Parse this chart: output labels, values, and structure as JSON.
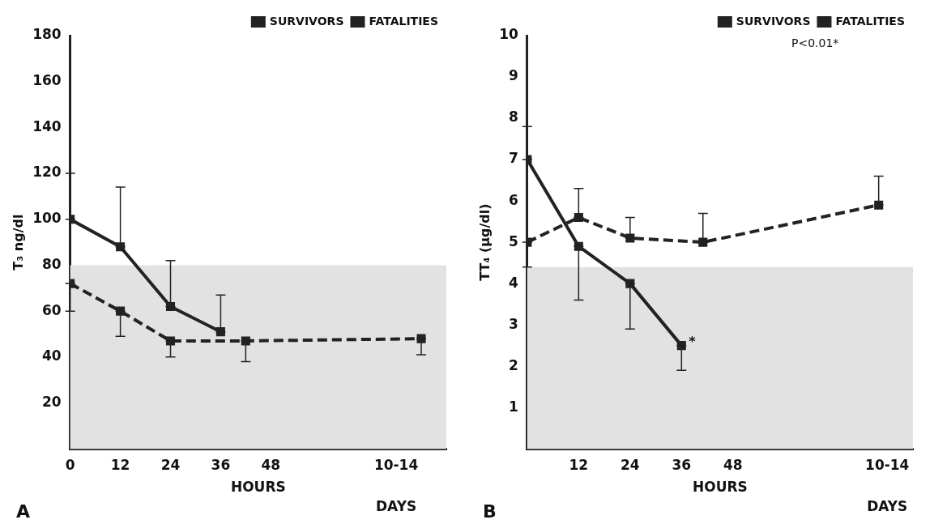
{
  "chart_data": [
    {
      "type": "line",
      "title": "A",
      "xlabel": "HOURS",
      "ylabel": "T₃ ng/dl",
      "xlim": [
        0,
        90
      ],
      "xticks": [
        0,
        12,
        24,
        36,
        48,
        {
          "value": 78,
          "label": "10-14"
        }
      ],
      "ylim": [
        0,
        180
      ],
      "yticks": [
        20,
        40,
        60,
        80,
        100,
        120,
        140,
        160,
        180
      ],
      "grid": false,
      "legend": "top right",
      "marker": "square",
      "series": [
        {
          "name": "SURVIVORS",
          "color": "#222222",
          "line_style": "dashed",
          "x": [
            0,
            12,
            24,
            42,
            84
          ],
          "values": [
            72,
            60,
            47,
            47,
            48
          ],
          "errors": [
            [
              60,
              72
            ],
            [
              49,
              60
            ],
            [
              40,
              47
            ],
            [
              38,
              47
            ],
            [
              41,
              48
            ]
          ]
        },
        {
          "name": "FATALITIES",
          "color": "#222222",
          "line_style": "solid",
          "x": [
            0,
            12,
            24,
            36
          ],
          "values": [
            100,
            88,
            62,
            51
          ],
          "errors": [
            [
              100,
              120
            ],
            [
              88,
              114
            ],
            [
              62,
              82
            ],
            [
              51,
              67
            ]
          ]
        }
      ],
      "bands": [
        {
          "axis": "y",
          "from": 0,
          "to": 80,
          "color": "#e2e2e2"
        }
      ],
      "annotations": [
        "DAYS"
      ]
    },
    {
      "type": "line",
      "title": "B",
      "xlabel": "HOURS",
      "ylabel": "TT₄ (µg/dl)",
      "xlim": [
        0,
        90
      ],
      "xticks": [
        12,
        24,
        36,
        48,
        {
          "value": 84,
          "label": "10-14"
        }
      ],
      "ylim": [
        0,
        10
      ],
      "yticks": [
        1,
        2,
        3,
        4,
        5,
        6,
        7,
        8,
        9,
        10
      ],
      "grid": false,
      "legend": "top right",
      "marker": "square",
      "series": [
        {
          "name": "SURVIVORS",
          "color": "#222222",
          "line_style": "dashed",
          "x": [
            0,
            12,
            24,
            41,
            82
          ],
          "values": [
            5.0,
            5.6,
            5.1,
            5.0,
            5.9
          ],
          "errors": [
            [
              4.4,
              5.0
            ],
            [
              5.6,
              6.3
            ],
            [
              5.1,
              5.6
            ],
            [
              5.0,
              5.7
            ],
            [
              5.9,
              6.6
            ]
          ]
        },
        {
          "name": "FATALITIES",
          "color": "#222222",
          "line_style": "solid",
          "x": [
            0,
            12,
            24,
            36
          ],
          "values": [
            7.0,
            4.9,
            4.0,
            2.5
          ],
          "errors": [
            [
              7.0,
              7.8
            ],
            [
              3.6,
              4.9
            ],
            [
              2.9,
              4.0
            ],
            [
              1.9,
              2.5
            ]
          ]
        }
      ],
      "bands": [
        {
          "axis": "y",
          "from": 0,
          "to": 4.4,
          "color": "#e2e2e2"
        }
      ],
      "annotations": [
        "DAYS",
        "P<0.01*",
        {
          "text": "*",
          "x": 36,
          "y": 2.5
        }
      ]
    }
  ]
}
